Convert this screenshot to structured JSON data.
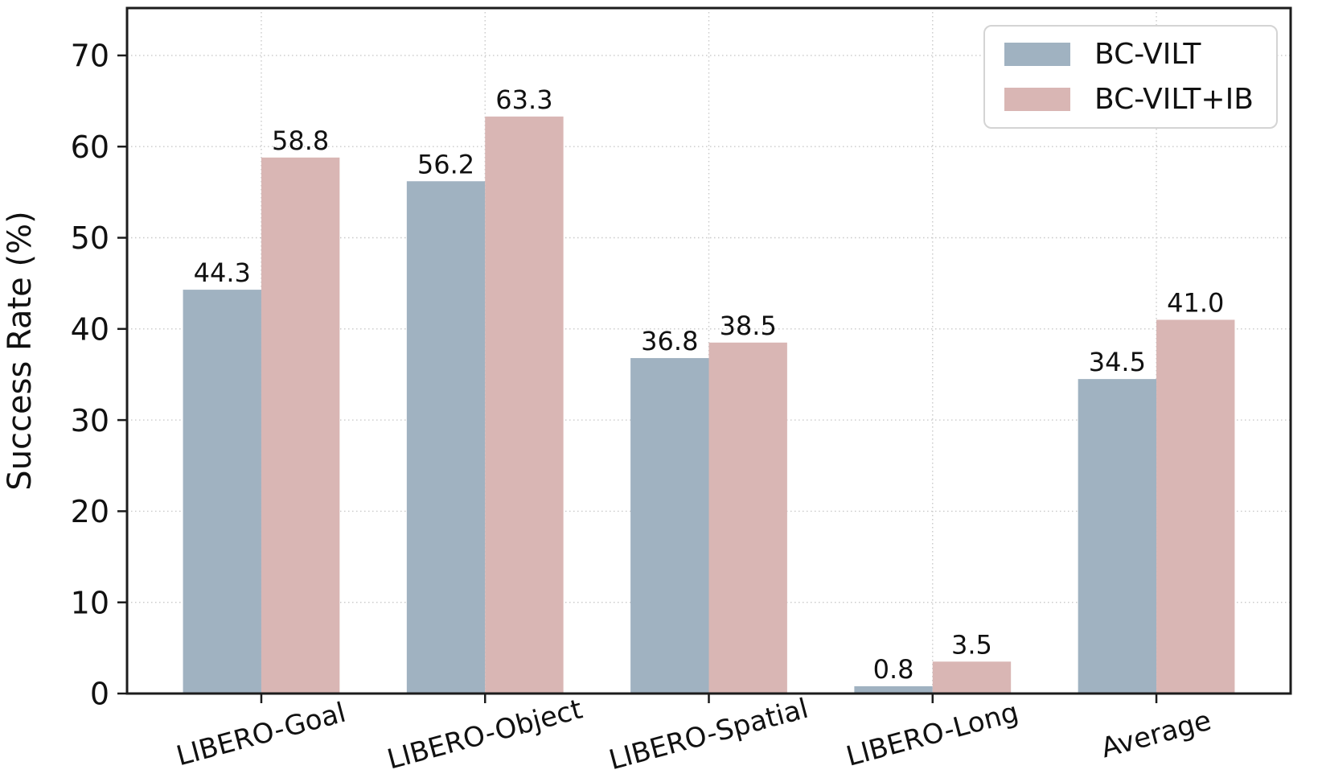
{
  "chart_data": {
    "type": "bar",
    "title": "",
    "xlabel": "",
    "ylabel": "Success Rate (%)",
    "categories": [
      "LIBERO-Goal",
      "LIBERO-Object",
      "LIBERO-Spatial",
      "LIBERO-Long",
      "Average"
    ],
    "series": [
      {
        "name": "BC-VILT",
        "color": "#a0b2c1",
        "values": [
          44.3,
          56.2,
          36.8,
          0.8,
          34.5
        ]
      },
      {
        "name": "BC-VILT+IB",
        "color": "#d9b6b4",
        "values": [
          58.8,
          63.3,
          38.5,
          3.5,
          41.0
        ]
      }
    ],
    "bar_labels": [
      [
        "44.3",
        "56.2",
        "36.8",
        "0.8",
        "34.5"
      ],
      [
        "58.8",
        "63.3",
        "38.5",
        "3.5",
        "41.0"
      ]
    ],
    "ylim": [
      0,
      75.2
    ],
    "yticks": [
      0,
      10,
      20,
      30,
      40,
      50,
      60,
      70
    ],
    "grid": true,
    "grid_style": "dotted",
    "legend_position": "upper right",
    "x_tick_rotation_deg": 15
  },
  "style": {
    "background": "#ffffff",
    "spine_color": "#1c1c1c",
    "tick_color": "#1c1c1c",
    "grid_color": "#c9c9c9",
    "text_color": "#111111",
    "legend_border_color": "#d4d4d4"
  }
}
